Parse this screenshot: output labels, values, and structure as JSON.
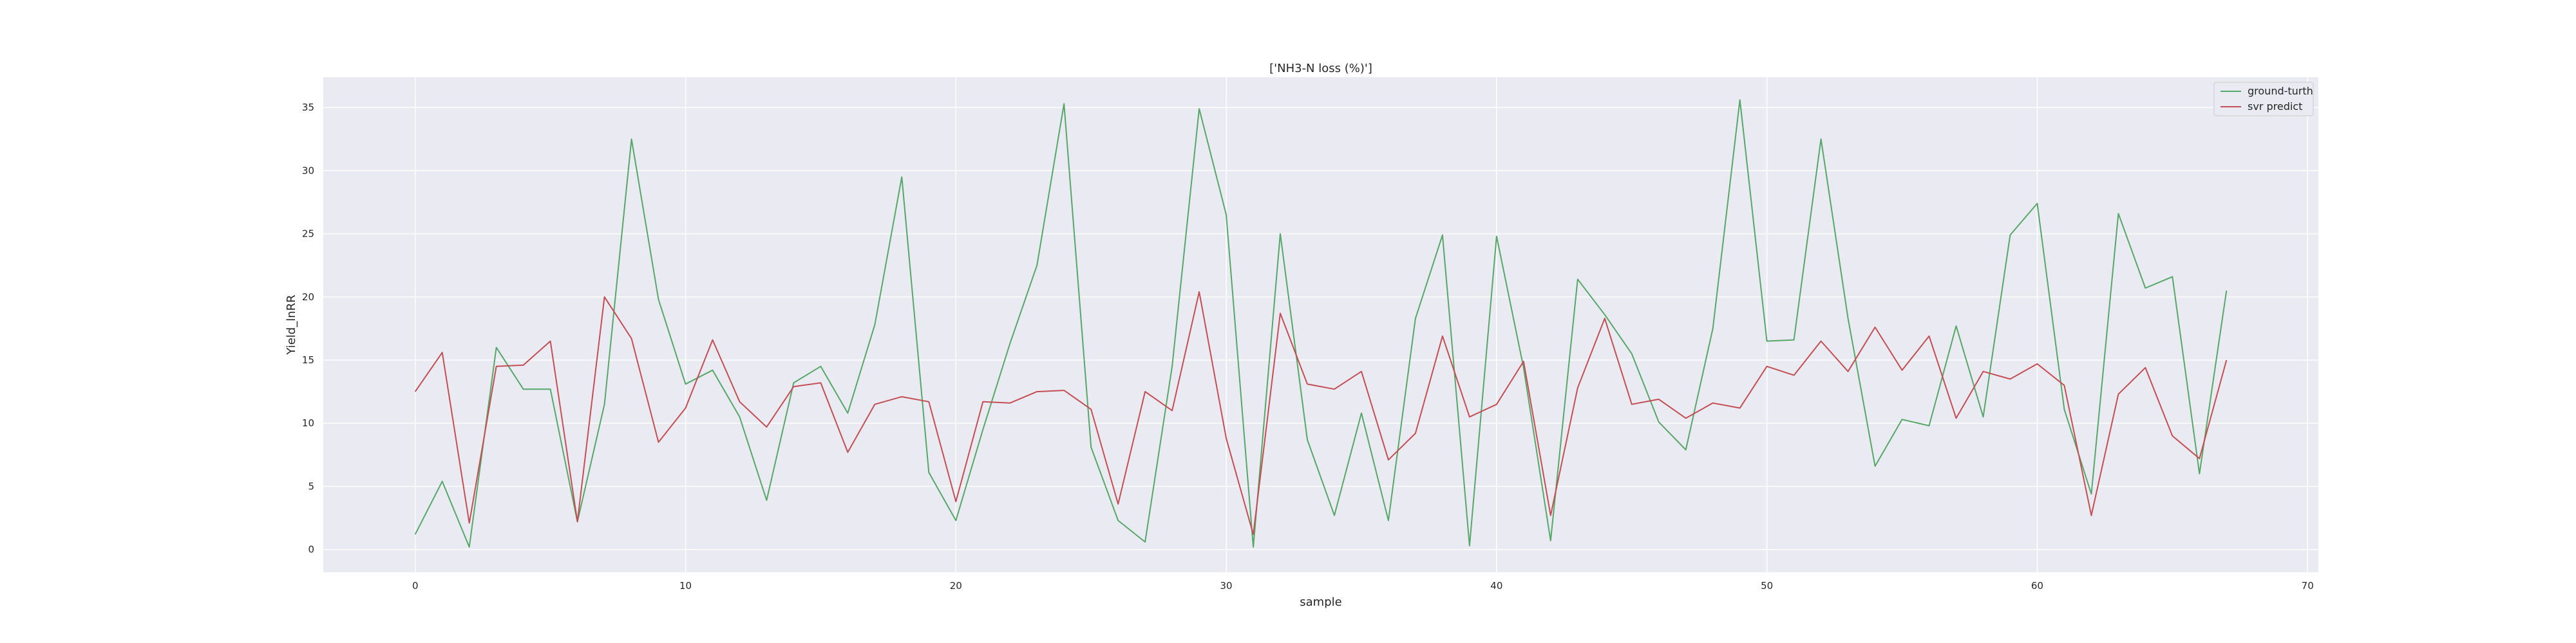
{
  "chart_data": {
    "type": "line",
    "title": "['NH3-N loss (%)']",
    "xlabel": "sample",
    "ylabel": "Yield_lnRR",
    "xlim": [
      -3.4,
      70.4
    ],
    "ylim": [
      -1.8,
      37.4
    ],
    "x_ticks": [
      0,
      10,
      20,
      30,
      40,
      50,
      60,
      70
    ],
    "y_ticks": [
      0,
      5,
      10,
      15,
      20,
      25,
      30,
      35
    ],
    "grid": true,
    "legend_position": "upper right",
    "x": [
      0,
      1,
      2,
      3,
      4,
      5,
      6,
      7,
      8,
      9,
      10,
      11,
      12,
      13,
      14,
      15,
      16,
      17,
      18,
      19,
      20,
      21,
      22,
      23,
      24,
      25,
      26,
      27,
      28,
      29,
      30,
      31,
      32,
      33,
      34,
      35,
      36,
      37,
      38,
      39,
      40,
      41,
      42,
      43,
      44,
      45,
      46,
      47,
      48,
      49,
      50,
      51,
      52,
      53,
      54,
      55,
      56,
      57,
      58,
      59,
      60,
      61,
      62,
      63,
      64,
      65,
      66,
      67
    ],
    "series": [
      {
        "name": "ground-turth",
        "color": "#55a868",
        "values": [
          1.2,
          5.4,
          0.2,
          16.0,
          12.7,
          12.7,
          2.2,
          11.5,
          32.5,
          19.8,
          13.1,
          14.2,
          10.5,
          3.9,
          13.2,
          14.5,
          10.8,
          17.8,
          29.5,
          6.1,
          2.3,
          9.5,
          16.3,
          22.5,
          35.3,
          8.1,
          2.3,
          0.6,
          14.5,
          34.9,
          26.5,
          0.2,
          25.0,
          8.7,
          2.7,
          10.8,
          2.3,
          18.3,
          24.9,
          0.3,
          24.8,
          14.4,
          0.7,
          21.4,
          18.6,
          15.5,
          10.1,
          7.9,
          17.5,
          35.6,
          16.5,
          16.6,
          32.5,
          18.3,
          6.6,
          10.3,
          9.8,
          17.7,
          10.5,
          24.9,
          27.4,
          11.1,
          4.4,
          26.6,
          20.7,
          21.6,
          6.0,
          20.5
        ]
      },
      {
        "name": "svr predict",
        "color": "#c44e52",
        "values": [
          12.5,
          15.6,
          2.1,
          14.5,
          14.6,
          16.5,
          2.2,
          20.0,
          16.7,
          8.5,
          11.2,
          16.6,
          11.7,
          9.7,
          12.9,
          13.2,
          7.7,
          11.5,
          12.1,
          11.7,
          3.8,
          11.7,
          11.6,
          12.5,
          12.6,
          11.1,
          3.6,
          12.5,
          11.0,
          20.4,
          8.8,
          1.2,
          18.7,
          13.1,
          12.7,
          14.1,
          7.1,
          9.2,
          16.9,
          10.5,
          11.5,
          14.9,
          2.7,
          12.8,
          18.3,
          11.5,
          11.9,
          10.4,
          11.6,
          11.2,
          14.5,
          13.8,
          16.5,
          14.1,
          17.6,
          14.2,
          16.9,
          10.4,
          14.1,
          13.5,
          14.7,
          13.0,
          2.7,
          12.3,
          14.4,
          9.0,
          7.2,
          15.0
        ]
      }
    ]
  }
}
